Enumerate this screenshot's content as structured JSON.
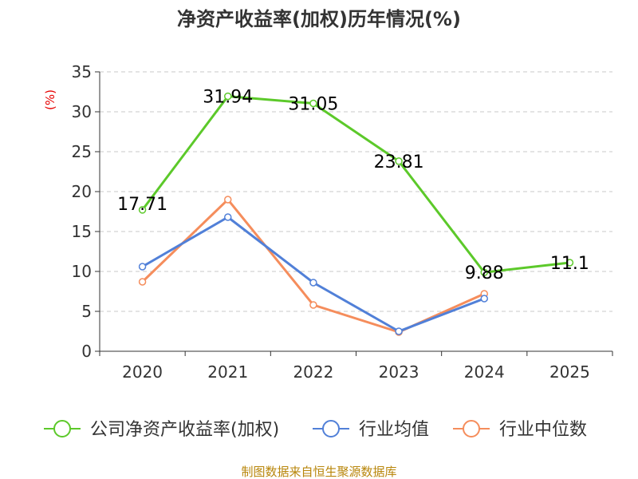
{
  "chart_data": {
    "type": "line",
    "title": "净资产收益率(加权)历年情况(%)",
    "ylabel": "(%)",
    "xlabel": "",
    "categories": [
      "2020",
      "2021",
      "2022",
      "2023",
      "2024",
      "2025"
    ],
    "ylim": [
      0,
      35
    ],
    "yticks": [
      0,
      5,
      10,
      15,
      20,
      25,
      30,
      35
    ],
    "grid": true,
    "legend_position": "bottom",
    "series": [
      {
        "name": "公司净资产收益率(加权)",
        "color": "#5cc92a",
        "values": [
          17.71,
          31.94,
          31.05,
          23.81,
          9.88,
          11.1
        ],
        "data_labels": [
          "17.71",
          "31.94",
          "31.05",
          "23.81",
          "9.88",
          "11.1"
        ]
      },
      {
        "name": "行业均值",
        "color": "#5180d8",
        "values": [
          10.6,
          16.8,
          8.6,
          2.5,
          6.6,
          null
        ]
      },
      {
        "name": "行业中位数",
        "color": "#f58d5c",
        "values": [
          8.7,
          19.0,
          5.8,
          2.4,
          7.2,
          null
        ]
      }
    ]
  },
  "footer": {
    "source": "制图数据来自恒生聚源数据库"
  }
}
